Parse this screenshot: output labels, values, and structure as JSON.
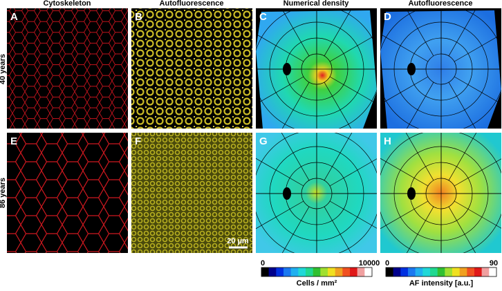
{
  "columns": [
    "Cytoskeleton",
    "Autofluorescence",
    "Numerical density",
    "Autofluorescence"
  ],
  "panels": [
    "A",
    "B",
    "C",
    "D",
    "E",
    "F",
    "G",
    "H"
  ],
  "rows": [
    "40 years",
    "86 years"
  ],
  "scale_bar": "20 µm",
  "colorbars": [
    {
      "min": "0",
      "max": "10000",
      "label": "Cells / mm²"
    },
    {
      "min": "0",
      "max": "90",
      "label": "AF intensity [a.u.]"
    }
  ]
}
